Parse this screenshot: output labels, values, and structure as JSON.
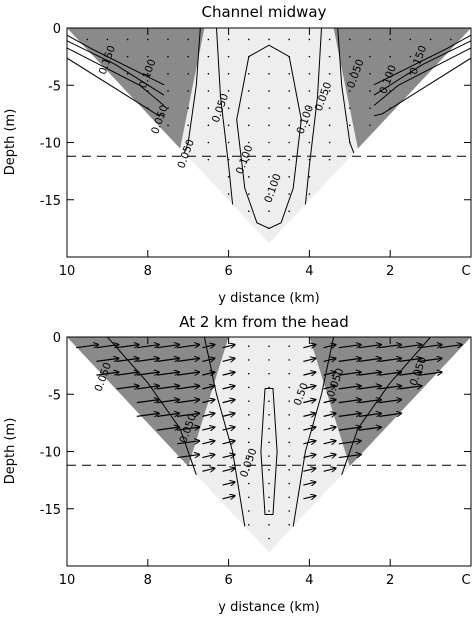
{
  "chart_data": [
    {
      "type": "contour",
      "title": "Channel midway",
      "xlabel": "y distance (km)",
      "ylabel": "Depth (m)",
      "xlim": [
        10,
        0
      ],
      "ylim": [
        -20,
        0
      ],
      "xticks": [
        10,
        8,
        6,
        4,
        2,
        0
      ],
      "yticks": [
        0,
        -5,
        -10,
        -15
      ],
      "x_tick_labels": [
        "10",
        "8",
        "6",
        "4",
        "2",
        "C"
      ],
      "y_tick_labels": [
        "0",
        "-5",
        "-10",
        "-15"
      ],
      "reference_depth": -11.2,
      "max_depth": -18.8,
      "shading": "dark gray where values exceed 0.050 near the sides, light gray in the central region",
      "vectors": false,
      "contour_labels": [
        {
          "text": "0.150",
          "x": 9.0,
          "y": -2.8
        },
        {
          "text": "0.100",
          "x": 8.0,
          "y": -4.0
        },
        {
          "text": "0.050",
          "x": 7.7,
          "y": -8.0
        },
        {
          "text": "0.050",
          "x": 7.05,
          "y": -11.0
        },
        {
          "text": "0.050",
          "x": 6.2,
          "y": -7.0
        },
        {
          "text": "0.100",
          "x": 5.6,
          "y": -11.5
        },
        {
          "text": "0.100",
          "x": 4.9,
          "y": -14.0
        },
        {
          "text": "0.100",
          "x": 4.1,
          "y": -8.0
        },
        {
          "text": "0.050",
          "x": 3.65,
          "y": -6.0
        },
        {
          "text": "0.050",
          "x": 2.85,
          "y": -4.0
        },
        {
          "text": "0.100",
          "x": 2.05,
          "y": -4.5
        },
        {
          "text": "0.150",
          "x": 1.3,
          "y": -2.8
        }
      ]
    },
    {
      "type": "contour",
      "title": "At 2 km from the head",
      "xlabel": "y distance (km)",
      "ylabel": "Depth (m)",
      "xlim": [
        10,
        0
      ],
      "ylim": [
        -20,
        0
      ],
      "xticks": [
        10,
        8,
        6,
        4,
        2,
        0
      ],
      "yticks": [
        0,
        -5,
        -10,
        -15
      ],
      "x_tick_labels": [
        "10",
        "8",
        "6",
        "4",
        "2",
        "C"
      ],
      "y_tick_labels": [
        "0",
        "-5",
        "-10",
        "-15"
      ],
      "reference_depth": -11.2,
      "max_depth": -18.8,
      "shading": "dark gray on the sides, light gray in the central region",
      "vectors": true,
      "contour_labels": [
        {
          "text": "0.050",
          "x": 9.1,
          "y": -3.5
        },
        {
          "text": "0.050",
          "x": 7.0,
          "y": -8.0
        },
        {
          "text": "0.050",
          "x": 5.5,
          "y": -11.0
        },
        {
          "text": "0.50",
          "x": 4.2,
          "y": -5.0
        },
        {
          "text": "0.050",
          "x": 3.35,
          "y": -4.0
        },
        {
          "text": "0.050",
          "x": 1.3,
          "y": -3.0
        }
      ]
    }
  ]
}
